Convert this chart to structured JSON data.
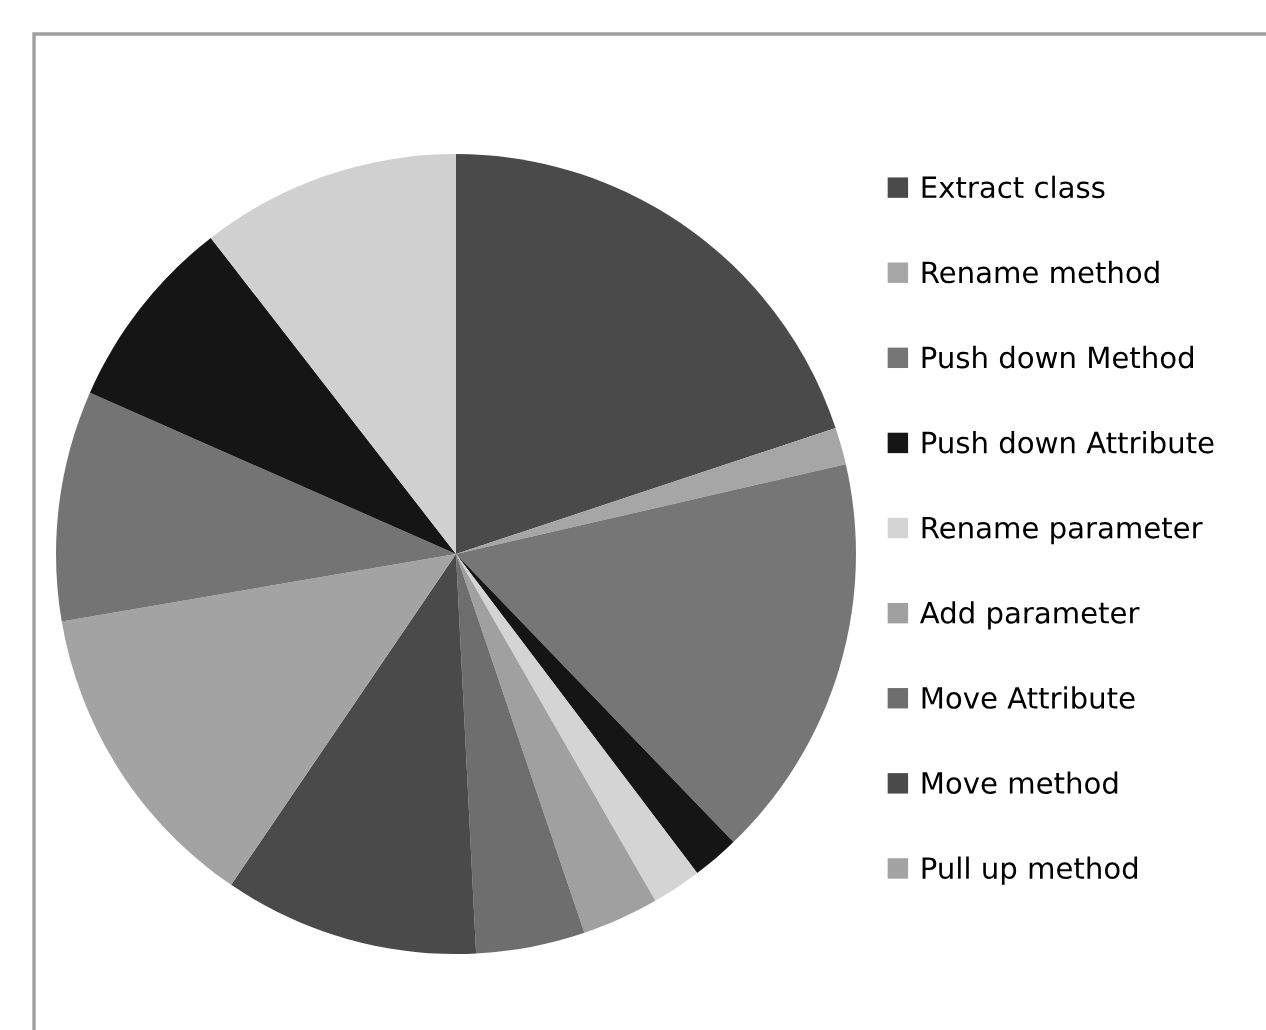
{
  "chart_data": {
    "type": "pie",
    "categories": [
      "Extract class",
      "Rename method",
      "Push down Method",
      "Push down Attribute",
      "Rename parameter",
      "Add parameter",
      "Move Attribute",
      "Move method",
      "Pull up method",
      null,
      null,
      null
    ],
    "values": [
      19.9,
      1.5,
      16.4,
      1.9,
      2.0,
      3.1,
      4.4,
      10.3,
      12.8,
      9.3,
      7.9,
      10.5
    ],
    "colors": [
      "#4a4a4a",
      "#a6a6a6",
      "#767676",
      "#151515",
      "#d4d4d4",
      "#a0a0a0",
      "#6e6e6e",
      "#4a4a4a",
      "#a3a3a3",
      "#747474",
      "#151515",
      "#d0d0d0"
    ],
    "legend": "right"
  }
}
